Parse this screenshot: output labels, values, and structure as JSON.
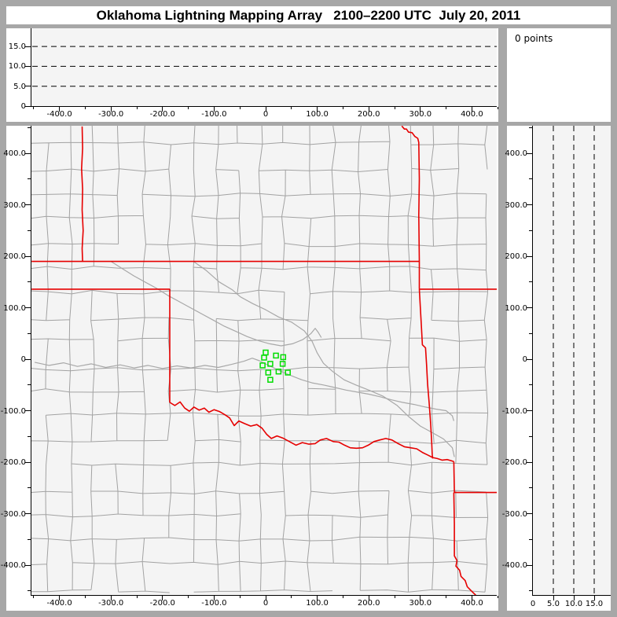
{
  "window": {
    "title": "Oklahoma Lightning Mapping Array   2100–2200 UTC  July 20, 2011"
  },
  "points_panel": {
    "label": "0 points"
  },
  "colors": {
    "frame": "#a7a7a7",
    "panel": "#ffffff",
    "plot_bg": "#f4f4f4",
    "axis": "#000000",
    "county_line": "#a2a2a2",
    "state_line": "#e60000",
    "river_line": "#a8a8a8",
    "station": "#00dd00",
    "text": "#000000"
  },
  "chart_data": [
    {
      "id": "altitude_vs_east_west",
      "type": "scatter",
      "points": [],
      "points_count": 0,
      "xlim": [
        -454,
        448
      ],
      "ylim": [
        0,
        19.6
      ],
      "x_ticks": {
        "values": [
          -400,
          -300,
          -200,
          -100,
          0,
          100,
          200,
          300,
          400
        ],
        "labels": [
          "-400.0",
          "-300.0",
          "-200.0",
          "-100.0",
          "0",
          "100.0",
          "200.0",
          "300.0",
          "400.0"
        ],
        "minor_values": [
          -450,
          -350,
          -250,
          -150,
          -50,
          50,
          150,
          250,
          350,
          450
        ]
      },
      "y_ticks": {
        "values": [
          0,
          5,
          10,
          15
        ],
        "labels": [
          "0",
          "5.0",
          "10.0",
          "15.0"
        ]
      },
      "dashed_y_levels": [
        5,
        10,
        15
      ],
      "grid": "dashed-horizontal"
    },
    {
      "id": "plan_view",
      "type": "scatter",
      "xlim": [
        -454,
        448
      ],
      "ylim": [
        -458,
        453
      ],
      "x_ticks": {
        "values": [
          -400,
          -300,
          -200,
          -100,
          0,
          100,
          200,
          300,
          400
        ],
        "labels": [
          "-400.0",
          "-300.0",
          "-200.0",
          "-100.0",
          "0",
          "100.0",
          "200.0",
          "300.0",
          "400.0"
        ],
        "minor_values": [
          -450,
          -350,
          -250,
          -150,
          -50,
          50,
          150,
          250,
          350,
          450
        ]
      },
      "y_ticks": {
        "values": [
          400,
          300,
          200,
          100,
          0,
          -100,
          -200,
          -300,
          -400
        ],
        "labels": [
          "400.0",
          "300.0",
          "200.0",
          "100.0",
          "0",
          "-100.0",
          "-200.0",
          "-300.0",
          "-400.0"
        ],
        "minor_values": [
          450,
          350,
          250,
          150,
          50,
          -50,
          -150,
          -250,
          -350,
          -450
        ]
      },
      "stations_km": [
        [
          0,
          13
        ],
        [
          20,
          7
        ],
        [
          34,
          4
        ],
        [
          -3,
          3
        ],
        [
          9,
          -9
        ],
        [
          -6,
          -12
        ],
        [
          33,
          -9
        ],
        [
          5,
          -26
        ],
        [
          25,
          -24
        ],
        [
          43,
          -26
        ],
        [
          9,
          -40
        ]
      ],
      "state_borders_km": {
        "colorado_kansas": [
          [
            -356,
            452
          ],
          [
            -355,
            410
          ],
          [
            -357,
            370
          ],
          [
            -355,
            330
          ],
          [
            -356,
            290
          ],
          [
            -354,
            250
          ],
          [
            -356,
            215
          ],
          [
            -355,
            190
          ]
        ],
        "kansas_oklahoma": [
          [
            -454,
            190
          ],
          [
            298,
            190
          ]
        ],
        "oklahoma_panhandle_south": [
          [
            -454,
            136
          ],
          [
            -186,
            136
          ]
        ],
        "texas_oklahoma_100w": [
          [
            -186,
            136
          ],
          [
            -186,
            -84
          ]
        ],
        "missouri_west": [
          [
            264,
            453
          ],
          [
            269,
            447
          ],
          [
            273,
            447
          ],
          [
            277,
            441
          ],
          [
            284,
            440
          ],
          [
            289,
            433
          ],
          [
            295,
            429
          ],
          [
            297,
            421
          ],
          [
            298,
            350
          ],
          [
            297,
            280
          ],
          [
            298,
            190
          ],
          [
            298,
            136
          ]
        ],
        "missouri_arkansas": [
          [
            298,
            136
          ],
          [
            450,
            136
          ]
        ],
        "oklahoma_arkansas": [
          [
            298,
            136
          ],
          [
            300,
            100
          ],
          [
            302,
            65
          ],
          [
            304,
            28
          ],
          [
            310,
            22
          ],
          [
            312,
            -10
          ],
          [
            314,
            -48
          ],
          [
            317,
            -85
          ],
          [
            320,
            -125
          ],
          [
            322,
            -160
          ],
          [
            323,
            -185
          ],
          [
            324,
            -193
          ]
        ],
        "red_river": [
          [
            -186,
            -84
          ],
          [
            -176,
            -90
          ],
          [
            -166,
            -83
          ],
          [
            -157,
            -95
          ],
          [
            -148,
            -101
          ],
          [
            -139,
            -93
          ],
          [
            -129,
            -99
          ],
          [
            -119,
            -95
          ],
          [
            -110,
            -103
          ],
          [
            -100,
            -98
          ],
          [
            -89,
            -102
          ],
          [
            -79,
            -108
          ],
          [
            -70,
            -114
          ],
          [
            -61,
            -129
          ],
          [
            -52,
            -120
          ],
          [
            -41,
            -125
          ],
          [
            -29,
            -130
          ],
          [
            -17,
            -127
          ],
          [
            -7,
            -134
          ],
          [
            2,
            -146
          ],
          [
            11,
            -154
          ],
          [
            22,
            -149
          ],
          [
            33,
            -153
          ],
          [
            46,
            -160
          ],
          [
            59,
            -167
          ],
          [
            71,
            -162
          ],
          [
            84,
            -165
          ],
          [
            96,
            -164
          ],
          [
            106,
            -157
          ],
          [
            118,
            -154
          ],
          [
            131,
            -160
          ],
          [
            142,
            -161
          ],
          [
            153,
            -167
          ],
          [
            164,
            -172
          ],
          [
            176,
            -173
          ],
          [
            188,
            -172
          ],
          [
            199,
            -167
          ],
          [
            210,
            -160
          ],
          [
            221,
            -157
          ],
          [
            233,
            -154
          ],
          [
            245,
            -157
          ],
          [
            257,
            -164
          ],
          [
            269,
            -170
          ],
          [
            281,
            -172
          ],
          [
            293,
            -174
          ],
          [
            304,
            -181
          ],
          [
            314,
            -186
          ],
          [
            324,
            -191
          ],
          [
            333,
            -193
          ],
          [
            342,
            -196
          ],
          [
            352,
            -195
          ],
          [
            359,
            -197
          ],
          [
            365,
            -199
          ]
        ],
        "texas_arkansas": [
          [
            365,
            -199
          ],
          [
            366,
            -259
          ]
        ],
        "arkansas_louisiana": [
          [
            365,
            -259
          ],
          [
            450,
            -259
          ]
        ],
        "texas_louisiana": [
          [
            365,
            -259
          ],
          [
            366,
            -320
          ],
          [
            366,
            -382
          ],
          [
            371,
            -391
          ],
          [
            369,
            -402
          ],
          [
            376,
            -410
          ],
          [
            379,
            -422
          ],
          [
            387,
            -430
          ],
          [
            391,
            -442
          ],
          [
            399,
            -450
          ],
          [
            405,
            -456
          ],
          [
            411,
            -462
          ]
        ]
      },
      "rivers_km": {
        "arkansas_river": [
          [
            -140,
            190
          ],
          [
            -115,
            172
          ],
          [
            -90,
            150
          ],
          [
            -65,
            135
          ],
          [
            -49,
            121
          ],
          [
            -25,
            108
          ],
          [
            0,
            96
          ],
          [
            25,
            82
          ],
          [
            50,
            72
          ],
          [
            75,
            55
          ],
          [
            90,
            35
          ],
          [
            100,
            12
          ],
          [
            112,
            -8
          ],
          [
            130,
            -24
          ],
          [
            152,
            -40
          ],
          [
            175,
            -50
          ],
          [
            200,
            -60
          ],
          [
            228,
            -72
          ],
          [
            255,
            -90
          ],
          [
            278,
            -112
          ],
          [
            300,
            -130
          ],
          [
            322,
            -142
          ],
          [
            345,
            -155
          ],
          [
            362,
            -172
          ],
          [
            366,
            -190
          ]
        ],
        "cimarron_river": [
          [
            -300,
            190
          ],
          [
            -278,
            176
          ],
          [
            -256,
            162
          ],
          [
            -234,
            150
          ],
          [
            -212,
            138
          ],
          [
            -190,
            124
          ],
          [
            -168,
            112
          ],
          [
            -146,
            100
          ],
          [
            -124,
            88
          ],
          [
            -102,
            76
          ],
          [
            -80,
            64
          ],
          [
            -58,
            54
          ],
          [
            -36,
            44
          ],
          [
            -14,
            36
          ],
          [
            8,
            30
          ],
          [
            30,
            26
          ],
          [
            52,
            30
          ],
          [
            72,
            38
          ],
          [
            88,
            50
          ],
          [
            96,
            60
          ],
          [
            102,
            52
          ],
          [
            108,
            42
          ]
        ],
        "canadian_river": [
          [
            -448,
            -6
          ],
          [
            -420,
            -12
          ],
          [
            -392,
            -7
          ],
          [
            -365,
            -14
          ],
          [
            -338,
            -9
          ],
          [
            -310,
            -16
          ],
          [
            -282,
            -11
          ],
          [
            -255,
            -17
          ],
          [
            -228,
            -12
          ],
          [
            -200,
            -18
          ],
          [
            -172,
            -13
          ],
          [
            -145,
            -17
          ],
          [
            -118,
            -12
          ],
          [
            -92,
            -16
          ],
          [
            -66,
            -10
          ],
          [
            -42,
            -4
          ],
          [
            -26,
            2
          ],
          [
            -12,
            -3
          ],
          [
            2,
            -10
          ],
          [
            18,
            -18
          ],
          [
            35,
            -26
          ],
          [
            52,
            -33
          ],
          [
            70,
            -40
          ],
          [
            90,
            -46
          ],
          [
            112,
            -50
          ],
          [
            134,
            -55
          ],
          [
            156,
            -60
          ],
          [
            178,
            -64
          ],
          [
            200,
            -68
          ],
          [
            222,
            -73
          ],
          [
            244,
            -79
          ],
          [
            266,
            -84
          ],
          [
            288,
            -88
          ],
          [
            310,
            -93
          ],
          [
            330,
            -97
          ],
          [
            350,
            -100
          ],
          [
            362,
            -110
          ],
          [
            365,
            -120
          ]
        ]
      },
      "county_grid": {
        "cell_km": [
          40,
          58
        ],
        "jitter_km": 4,
        "skip_fraction": 0.13,
        "seed": 20110720
      }
    },
    {
      "id": "altitude_vs_north_south",
      "type": "scatter",
      "points": [],
      "points_count": 0,
      "xlim": [
        0,
        19.0
      ],
      "ylim": [
        -458,
        453
      ],
      "x_ticks": {
        "values": [
          0,
          5,
          10,
          15
        ],
        "labels": [
          "0",
          "5.0",
          "10.0",
          "15.0"
        ]
      },
      "y_ticks": {
        "values": [
          400,
          300,
          200,
          100,
          0,
          -100,
          -200,
          -300,
          -400
        ],
        "labels": [
          "400.0",
          "300.0",
          "200.0",
          "100.0",
          "0",
          "-100.0",
          "-200.0",
          "-300.0",
          "-400.0"
        ],
        "minor_values": [
          450,
          350,
          250,
          150,
          50,
          -50,
          -150,
          -250,
          -350,
          -450
        ]
      },
      "dashed_x_levels": [
        5,
        10,
        15
      ],
      "grid": "dashed-vertical"
    }
  ]
}
